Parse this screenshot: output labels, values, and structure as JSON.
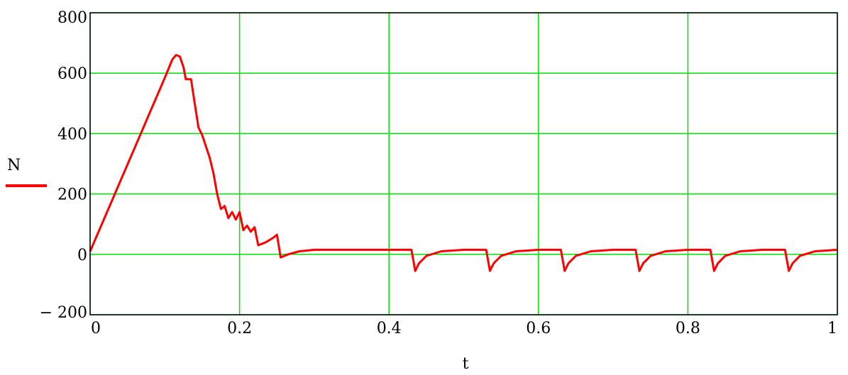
{
  "chart_data": {
    "type": "line",
    "title": "",
    "xlabel": "t",
    "ylabel": "",
    "xlim": [
      0,
      1
    ],
    "ylim": [
      -200,
      800
    ],
    "x_ticks": [
      0,
      0.2,
      0.4,
      0.6,
      0.8,
      1
    ],
    "x_tick_labels": [
      "0",
      "0.2",
      "0.4",
      "0.6",
      "0.8",
      "1"
    ],
    "y_ticks": [
      -200,
      0,
      200,
      400,
      600,
      800
    ],
    "y_tick_labels": [
      "− 200",
      "0",
      "200",
      "400",
      "600",
      "800"
    ],
    "grid": true,
    "grid_color": "#00e000",
    "legend": {
      "placement": "left",
      "entries": [
        {
          "label": "N",
          "color": "#ff0000"
        }
      ]
    },
    "series": [
      {
        "name": "N",
        "color": "#ff0000",
        "points": [
          [
            0,
            10
          ],
          [
            0.02,
            125
          ],
          [
            0.04,
            240
          ],
          [
            0.06,
            355
          ],
          [
            0.08,
            470
          ],
          [
            0.1,
            585
          ],
          [
            0.11,
            645
          ],
          [
            0.115,
            660
          ],
          [
            0.12,
            655
          ],
          [
            0.125,
            620
          ],
          [
            0.128,
            580
          ],
          [
            0.135,
            580
          ],
          [
            0.14,
            500
          ],
          [
            0.145,
            420
          ],
          [
            0.15,
            395
          ],
          [
            0.16,
            320
          ],
          [
            0.165,
            270
          ],
          [
            0.17,
            200
          ],
          [
            0.175,
            150
          ],
          [
            0.18,
            160
          ],
          [
            0.185,
            120
          ],
          [
            0.19,
            140
          ],
          [
            0.195,
            115
          ],
          [
            0.2,
            140
          ],
          [
            0.205,
            80
          ],
          [
            0.21,
            95
          ],
          [
            0.215,
            75
          ],
          [
            0.22,
            90
          ],
          [
            0.225,
            30
          ],
          [
            0.235,
            40
          ],
          [
            0.245,
            55
          ],
          [
            0.25,
            65
          ],
          [
            0.255,
            -10
          ],
          [
            0.265,
            0
          ],
          [
            0.28,
            10
          ],
          [
            0.3,
            15
          ],
          [
            0.35,
            15
          ],
          [
            0.4,
            15
          ],
          [
            0.43,
            15
          ],
          [
            0.435,
            -55
          ],
          [
            0.44,
            -30
          ],
          [
            0.45,
            -5
          ],
          [
            0.47,
            10
          ],
          [
            0.5,
            15
          ],
          [
            0.53,
            15
          ],
          [
            0.535,
            -55
          ],
          [
            0.54,
            -30
          ],
          [
            0.55,
            -5
          ],
          [
            0.57,
            10
          ],
          [
            0.6,
            15
          ],
          [
            0.63,
            15
          ],
          [
            0.635,
            -55
          ],
          [
            0.64,
            -30
          ],
          [
            0.65,
            -5
          ],
          [
            0.67,
            10
          ],
          [
            0.7,
            15
          ],
          [
            0.73,
            15
          ],
          [
            0.735,
            -55
          ],
          [
            0.74,
            -30
          ],
          [
            0.75,
            -5
          ],
          [
            0.77,
            10
          ],
          [
            0.8,
            15
          ],
          [
            0.83,
            15
          ],
          [
            0.835,
            -55
          ],
          [
            0.84,
            -30
          ],
          [
            0.85,
            -5
          ],
          [
            0.87,
            10
          ],
          [
            0.9,
            15
          ],
          [
            0.93,
            15
          ],
          [
            0.935,
            -55
          ],
          [
            0.94,
            -30
          ],
          [
            0.95,
            -5
          ],
          [
            0.97,
            10
          ],
          [
            1.0,
            15
          ]
        ]
      }
    ]
  }
}
